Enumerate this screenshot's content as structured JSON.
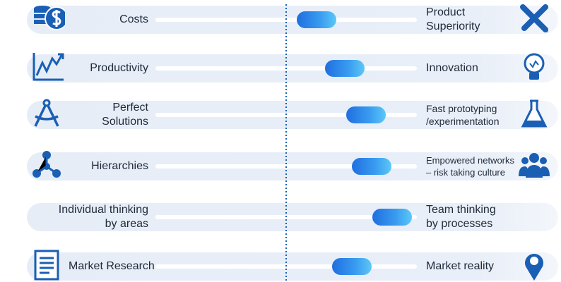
{
  "rows": [
    {
      "left": [
        "Costs"
      ],
      "right": [
        "Product",
        "Superiority"
      ]
    },
    {
      "left": [
        "Productivity"
      ],
      "right": [
        "Innovation"
      ]
    },
    {
      "left": [
        "Perfect",
        "Solutions"
      ],
      "right": [
        "Fast prototyping",
        "/experimentation"
      ]
    },
    {
      "left": [
        "Hierarchies"
      ],
      "right": [
        "Empowered networks",
        "– risk taking culture"
      ]
    },
    {
      "left": [
        "Individual thinking",
        "by areas"
      ],
      "right": [
        "Team thinking",
        "by processes"
      ]
    },
    {
      "left": [
        "Market Research"
      ],
      "right": [
        "Market reality"
      ]
    }
  ]
}
